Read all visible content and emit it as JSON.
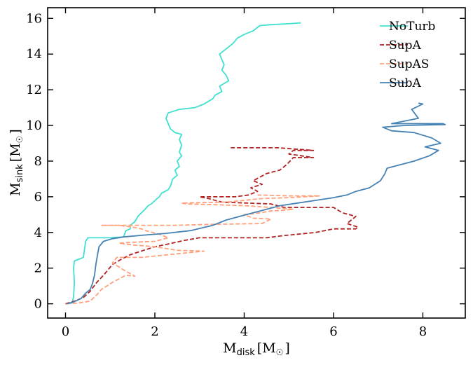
{
  "chart_data": {
    "type": "line",
    "title": "",
    "xlabel": {
      "main": "M",
      "sub": "disk",
      "unit": "[M",
      "sun": "☉",
      "close": "]"
    },
    "ylabel": {
      "main": "M",
      "sub": "sink",
      "unit": "[M",
      "sun": "☉",
      "close": "]"
    },
    "xlim": [
      -0.4,
      8.95
    ],
    "ylim": [
      -0.8,
      16.6
    ],
    "xticks": [
      0,
      2,
      4,
      6,
      8
    ],
    "yticks": [
      0,
      2,
      4,
      6,
      8,
      10,
      12,
      14,
      16
    ],
    "grid": false,
    "legend_position": "top-right",
    "series": [
      {
        "name": "NoTurb",
        "color": "#40e0d0",
        "dash": "solid",
        "points": [
          [
            0.02,
            0
          ],
          [
            0.15,
            0.05
          ],
          [
            0.18,
            0.4
          ],
          [
            0.2,
            1.2
          ],
          [
            0.18,
            2.0
          ],
          [
            0.2,
            2.4
          ],
          [
            0.3,
            2.5
          ],
          [
            0.4,
            2.6
          ],
          [
            0.45,
            3.5
          ],
          [
            0.5,
            3.7
          ],
          [
            1.0,
            3.7
          ],
          [
            1.3,
            3.75
          ],
          [
            1.35,
            4.1
          ],
          [
            1.45,
            4.2
          ],
          [
            1.45,
            4.4
          ],
          [
            1.55,
            4.6
          ],
          [
            1.62,
            4.9
          ],
          [
            1.7,
            5.1
          ],
          [
            1.78,
            5.3
          ],
          [
            1.85,
            5.5
          ],
          [
            1.92,
            5.6
          ],
          [
            2.05,
            5.9
          ],
          [
            2.1,
            6.0
          ],
          [
            2.15,
            6.2
          ],
          [
            2.3,
            6.4
          ],
          [
            2.35,
            6.6
          ],
          [
            2.4,
            7.0
          ],
          [
            2.5,
            7.2
          ],
          [
            2.45,
            7.5
          ],
          [
            2.55,
            7.7
          ],
          [
            2.5,
            8.0
          ],
          [
            2.6,
            8.3
          ],
          [
            2.55,
            8.5
          ],
          [
            2.6,
            8.9
          ],
          [
            2.55,
            9.2
          ],
          [
            2.6,
            9.5
          ],
          [
            2.45,
            9.6
          ],
          [
            2.35,
            9.8
          ],
          [
            2.3,
            10.1
          ],
          [
            2.25,
            10.4
          ],
          [
            2.3,
            10.7
          ],
          [
            2.55,
            10.9
          ],
          [
            2.9,
            11.0
          ],
          [
            3.1,
            11.2
          ],
          [
            3.3,
            11.5
          ],
          [
            3.35,
            11.7
          ],
          [
            3.5,
            11.9
          ],
          [
            3.45,
            12.2
          ],
          [
            3.65,
            12.5
          ],
          [
            3.6,
            12.8
          ],
          [
            3.5,
            13.1
          ],
          [
            3.55,
            13.4
          ],
          [
            3.5,
            13.7
          ],
          [
            3.45,
            14.0
          ],
          [
            3.6,
            14.3
          ],
          [
            3.75,
            14.6
          ],
          [
            3.85,
            14.9
          ],
          [
            4.0,
            15.1
          ],
          [
            4.2,
            15.3
          ],
          [
            4.35,
            15.6
          ],
          [
            4.6,
            15.65
          ],
          [
            5.0,
            15.7
          ],
          [
            5.27,
            15.75
          ]
        ]
      },
      {
        "name": "SupA",
        "color": "#b22222",
        "dash": "dashed",
        "points": [
          [
            0.0,
            0
          ],
          [
            0.2,
            0.15
          ],
          [
            0.4,
            0.35
          ],
          [
            0.55,
            0.7
          ],
          [
            0.7,
            1.2
          ],
          [
            0.85,
            1.6
          ],
          [
            0.95,
            1.9
          ],
          [
            1.05,
            2.2
          ],
          [
            1.25,
            2.5
          ],
          [
            1.45,
            2.75
          ],
          [
            1.75,
            3.0
          ],
          [
            2.0,
            3.2
          ],
          [
            2.3,
            3.35
          ],
          [
            2.65,
            3.55
          ],
          [
            3.0,
            3.7
          ],
          [
            4.5,
            3.7
          ],
          [
            4.8,
            3.8
          ],
          [
            5.2,
            3.9
          ],
          [
            5.6,
            4.0
          ],
          [
            6.0,
            4.2
          ],
          [
            6.5,
            4.2
          ],
          [
            6.55,
            4.3
          ],
          [
            6.3,
            4.5
          ],
          [
            6.5,
            4.9
          ],
          [
            6.2,
            5.1
          ],
          [
            6.0,
            5.4
          ],
          [
            4.9,
            5.4
          ],
          [
            4.6,
            5.6
          ],
          [
            3.5,
            5.7
          ],
          [
            3.2,
            5.9
          ],
          [
            3.0,
            6.0
          ],
          [
            3.8,
            6.0
          ],
          [
            4.1,
            6.1
          ],
          [
            4.3,
            6.3
          ],
          [
            4.15,
            6.5
          ],
          [
            4.4,
            6.7
          ],
          [
            4.2,
            6.9
          ],
          [
            4.35,
            7.1
          ],
          [
            4.5,
            7.3
          ],
          [
            4.8,
            7.5
          ],
          [
            4.95,
            7.8
          ],
          [
            5.1,
            8.2
          ],
          [
            5.55,
            8.2
          ],
          [
            5.0,
            8.4
          ],
          [
            5.1,
            8.6
          ],
          [
            5.55,
            8.6
          ],
          [
            4.75,
            8.75
          ],
          [
            3.7,
            8.75
          ]
        ]
      },
      {
        "name": "SupAS",
        "color": "#ffa07a",
        "dash": "dashed",
        "points": [
          [
            0.02,
            0
          ],
          [
            0.3,
            0.05
          ],
          [
            0.55,
            0.15
          ],
          [
            0.7,
            0.5
          ],
          [
            0.8,
            0.8
          ],
          [
            1.05,
            1.2
          ],
          [
            1.35,
            1.6
          ],
          [
            1.55,
            1.55
          ],
          [
            1.3,
            1.9
          ],
          [
            1.05,
            2.3
          ],
          [
            1.15,
            2.6
          ],
          [
            1.7,
            2.6
          ],
          [
            2.5,
            2.8
          ],
          [
            3.1,
            2.95
          ],
          [
            2.5,
            3.0
          ],
          [
            2.0,
            3.2
          ],
          [
            1.5,
            3.3
          ],
          [
            1.2,
            3.4
          ],
          [
            1.5,
            3.45
          ],
          [
            2.0,
            3.5
          ],
          [
            2.3,
            3.7
          ],
          [
            2.1,
            3.9
          ],
          [
            1.8,
            4.1
          ],
          [
            1.7,
            4.2
          ],
          [
            1.5,
            4.3
          ],
          [
            1.2,
            4.4
          ],
          [
            0.8,
            4.4
          ],
          [
            2.5,
            4.4
          ],
          [
            3.2,
            4.45
          ],
          [
            4.4,
            4.5
          ],
          [
            4.6,
            4.75
          ],
          [
            4.2,
            4.8
          ],
          [
            4.0,
            5.0
          ],
          [
            4.35,
            5.1
          ],
          [
            4.6,
            5.2
          ],
          [
            4.9,
            5.25
          ],
          [
            5.1,
            5.3
          ],
          [
            4.6,
            5.4
          ],
          [
            4.0,
            5.5
          ],
          [
            3.4,
            5.55
          ],
          [
            2.7,
            5.6
          ],
          [
            2.6,
            5.65
          ],
          [
            3.6,
            5.7
          ],
          [
            4.0,
            5.8
          ],
          [
            4.4,
            5.9
          ],
          [
            5.0,
            5.95
          ],
          [
            5.7,
            6.05
          ],
          [
            5.0,
            6.05
          ],
          [
            4.3,
            6.1
          ]
        ]
      },
      {
        "name": "SubA",
        "color": "#4682b4",
        "dash": "solid",
        "points": [
          [
            0.03,
            0
          ],
          [
            0.2,
            0.12
          ],
          [
            0.35,
            0.3
          ],
          [
            0.45,
            0.6
          ],
          [
            0.55,
            0.8
          ],
          [
            0.6,
            1.1
          ],
          [
            0.65,
            1.6
          ],
          [
            0.68,
            2.2
          ],
          [
            0.72,
            2.8
          ],
          [
            0.75,
            3.2
          ],
          [
            0.85,
            3.5
          ],
          [
            1.05,
            3.65
          ],
          [
            1.3,
            3.75
          ],
          [
            1.75,
            3.85
          ],
          [
            2.25,
            3.95
          ],
          [
            2.8,
            4.1
          ],
          [
            3.05,
            4.25
          ],
          [
            3.3,
            4.4
          ],
          [
            3.6,
            4.7
          ],
          [
            3.9,
            4.9
          ],
          [
            4.2,
            5.1
          ],
          [
            4.5,
            5.3
          ],
          [
            4.8,
            5.5
          ],
          [
            5.2,
            5.65
          ],
          [
            5.6,
            5.8
          ],
          [
            6.0,
            5.95
          ],
          [
            6.3,
            6.1
          ],
          [
            6.5,
            6.3
          ],
          [
            6.8,
            6.5
          ],
          [
            7.05,
            6.9
          ],
          [
            7.15,
            7.3
          ],
          [
            7.2,
            7.6
          ],
          [
            7.5,
            7.8
          ],
          [
            7.8,
            8.0
          ],
          [
            8.15,
            8.3
          ],
          [
            8.35,
            8.6
          ],
          [
            8.05,
            8.8
          ],
          [
            8.4,
            9.0
          ],
          [
            8.2,
            9.3
          ],
          [
            7.8,
            9.6
          ],
          [
            7.3,
            9.7
          ],
          [
            7.1,
            9.9
          ],
          [
            7.6,
            10.0
          ],
          [
            8.5,
            10.05
          ],
          [
            8.45,
            10.1
          ],
          [
            7.3,
            10.1
          ],
          [
            7.9,
            10.4
          ],
          [
            7.75,
            10.9
          ],
          [
            8.0,
            11.2
          ],
          [
            7.9,
            11.25
          ]
        ]
      }
    ]
  }
}
